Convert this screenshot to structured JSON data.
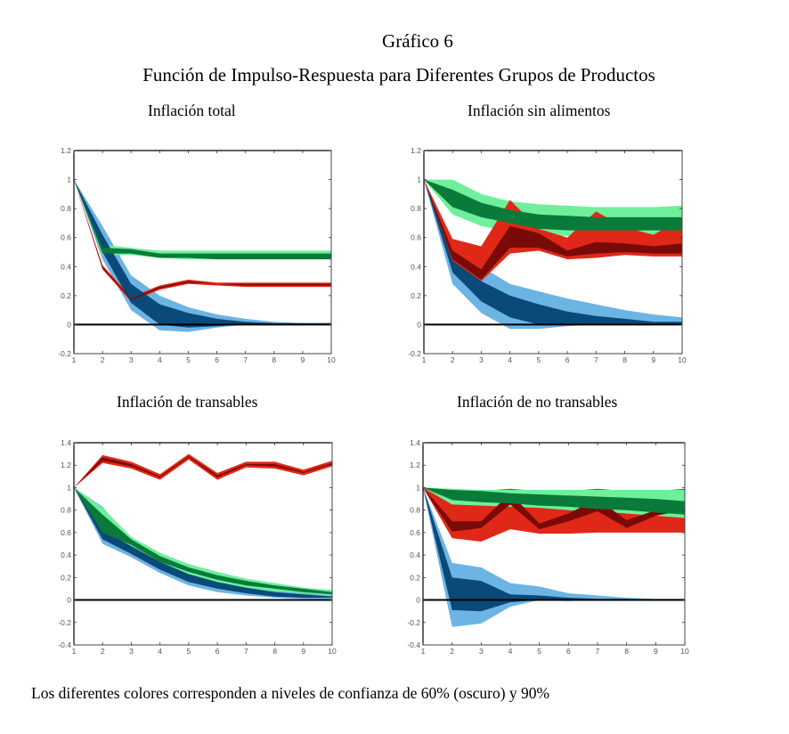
{
  "figure": {
    "title": "Gráfico 6",
    "subtitle": "Función de Impulso-Respuesta para Diferentes Grupos de Productos",
    "note": "Los diferentes colores corresponden a niveles de confianza de 60% (oscuro) y 90%"
  },
  "colors": {
    "blue_outer": "#6cb4e4",
    "blue_inner": "#0a4a78",
    "green_outer": "#6ef09a",
    "green_inner": "#0a7a3a",
    "red_outer": "#e02818",
    "red_inner": "#7a0a08",
    "zero_line": "#000000"
  },
  "chart_data": [
    {
      "type": "area",
      "title": "Inflación total",
      "x": [
        1,
        2,
        3,
        4,
        5,
        6,
        7,
        8,
        9,
        10
      ],
      "xticks": [
        "1",
        "2",
        "3",
        "4",
        "5",
        "6",
        "7",
        "8",
        "9",
        "10"
      ],
      "yticks": [
        "1.2",
        "1",
        "0.8",
        "0.6",
        "0.4",
        "0.2",
        "0",
        "-0.2"
      ],
      "ylim": [
        -0.2,
        1.2
      ],
      "xlim": [
        1,
        10
      ],
      "series": [
        {
          "name": "blue",
          "outer_lo": [
            1,
            0.45,
            0.1,
            -0.04,
            -0.05,
            -0.02,
            0,
            0,
            0,
            0
          ],
          "outer_hi": [
            1,
            0.68,
            0.34,
            0.2,
            0.12,
            0.07,
            0.04,
            0.02,
            0.01,
            0.01
          ],
          "inner_lo": [
            1,
            0.5,
            0.15,
            0.0,
            -0.02,
            -0.01,
            0,
            0,
            0,
            0
          ],
          "inner_hi": [
            1,
            0.62,
            0.28,
            0.14,
            0.08,
            0.04,
            0.02,
            0.01,
            0.01,
            0.01
          ]
        },
        {
          "name": "green",
          "outer_lo": [
            1,
            0.48,
            0.48,
            0.46,
            0.45,
            0.45,
            0.45,
            0.45,
            0.45,
            0.45
          ],
          "outer_hi": [
            1,
            0.55,
            0.53,
            0.51,
            0.51,
            0.51,
            0.51,
            0.51,
            0.51,
            0.51
          ],
          "inner_lo": [
            1,
            0.49,
            0.49,
            0.46,
            0.46,
            0.45,
            0.45,
            0.45,
            0.45,
            0.45
          ],
          "inner_hi": [
            1,
            0.53,
            0.52,
            0.49,
            0.49,
            0.49,
            0.49,
            0.49,
            0.49,
            0.49
          ]
        },
        {
          "name": "red",
          "outer_lo": [
            1,
            0.38,
            0.16,
            0.24,
            0.28,
            0.27,
            0.26,
            0.26,
            0.26,
            0.26
          ],
          "outer_hi": [
            1,
            0.41,
            0.19,
            0.27,
            0.31,
            0.29,
            0.29,
            0.29,
            0.29,
            0.29
          ],
          "inner_lo": [
            1,
            0.39,
            0.17,
            0.25,
            0.29,
            0.28,
            0.27,
            0.27,
            0.27,
            0.27
          ],
          "inner_hi": [
            1,
            0.4,
            0.18,
            0.26,
            0.3,
            0.28,
            0.28,
            0.28,
            0.28,
            0.28
          ]
        }
      ]
    },
    {
      "type": "area",
      "title": "Inflación sin alimentos",
      "x": [
        1,
        2,
        3,
        4,
        5,
        6,
        7,
        8,
        9,
        10
      ],
      "xticks": [
        "1",
        "2",
        "3",
        "4",
        "5",
        "6",
        "7",
        "8",
        "9",
        "10"
      ],
      "yticks": [
        "1.2",
        "1",
        "0.8",
        "0.6",
        "0.4",
        "0.2",
        "0",
        "-0.2"
      ],
      "ylim": [
        -0.2,
        1.2
      ],
      "xlim": [
        1,
        10
      ],
      "series": [
        {
          "name": "blue",
          "outer_lo": [
            1,
            0.28,
            0.08,
            -0.03,
            -0.03,
            -0.01,
            0,
            0,
            0,
            0
          ],
          "outer_hi": [
            1,
            0.5,
            0.4,
            0.28,
            0.23,
            0.18,
            0.14,
            0.1,
            0.07,
            0.05
          ],
          "inner_lo": [
            1,
            0.36,
            0.16,
            0.05,
            0.0,
            0,
            0,
            0,
            0,
            0
          ],
          "inner_hi": [
            1,
            0.44,
            0.3,
            0.2,
            0.14,
            0.09,
            0.06,
            0.04,
            0.02,
            0.02
          ]
        },
        {
          "name": "green",
          "outer_lo": [
            1,
            0.76,
            0.68,
            0.64,
            0.62,
            0.61,
            0.62,
            0.62,
            0.62,
            0.63
          ],
          "outer_hi": [
            1,
            1.0,
            0.9,
            0.85,
            0.83,
            0.82,
            0.81,
            0.81,
            0.81,
            0.82
          ],
          "inner_lo": [
            1,
            0.81,
            0.74,
            0.7,
            0.66,
            0.65,
            0.65,
            0.65,
            0.65,
            0.65
          ],
          "inner_hi": [
            1,
            0.93,
            0.84,
            0.79,
            0.76,
            0.75,
            0.74,
            0.74,
            0.74,
            0.74
          ]
        },
        {
          "name": "red",
          "outer_lo": [
            1,
            0.43,
            0.3,
            0.49,
            0.51,
            0.45,
            0.46,
            0.48,
            0.47,
            0.47
          ],
          "outer_hi": [
            1,
            0.59,
            0.54,
            0.86,
            0.66,
            0.6,
            0.78,
            0.67,
            0.62,
            0.73
          ],
          "inner_lo": [
            1,
            0.45,
            0.31,
            0.53,
            0.53,
            0.47,
            0.49,
            0.5,
            0.49,
            0.49
          ],
          "inner_hi": [
            1,
            0.51,
            0.38,
            0.68,
            0.63,
            0.51,
            0.57,
            0.56,
            0.54,
            0.56
          ]
        }
      ]
    },
    {
      "type": "area",
      "title": "Inflación de transables",
      "x": [
        1,
        2,
        3,
        4,
        5,
        6,
        7,
        8,
        9,
        10
      ],
      "xticks": [
        "1",
        "2",
        "3",
        "4",
        "5",
        "6",
        "7",
        "8",
        "9",
        "10"
      ],
      "yticks": [
        "1.4",
        "1.2",
        "1",
        "0.8",
        "0.6",
        "0.4",
        "0.2",
        "0",
        "-0.2",
        "-0.4"
      ],
      "ylim": [
        -0.4,
        1.4
      ],
      "xlim": [
        1,
        10
      ],
      "series": [
        {
          "name": "blue",
          "outer_lo": [
            1,
            0.5,
            0.38,
            0.24,
            0.13,
            0.07,
            0.04,
            0.02,
            0.01,
            0.01
          ],
          "outer_hi": [
            1,
            0.83,
            0.52,
            0.37,
            0.26,
            0.19,
            0.14,
            0.1,
            0.07,
            0.05
          ],
          "inner_lo": [
            1,
            0.54,
            0.41,
            0.27,
            0.16,
            0.1,
            0.06,
            0.03,
            0.02,
            0.02
          ],
          "inner_hi": [
            1,
            0.62,
            0.48,
            0.34,
            0.23,
            0.16,
            0.11,
            0.07,
            0.05,
            0.03
          ]
        },
        {
          "name": "green",
          "outer_lo": [
            1,
            0.55,
            0.45,
            0.31,
            0.22,
            0.15,
            0.11,
            0.08,
            0.06,
            0.04
          ],
          "outer_hi": [
            1,
            0.82,
            0.56,
            0.42,
            0.32,
            0.25,
            0.19,
            0.15,
            0.11,
            0.09
          ],
          "inner_lo": [
            1,
            0.6,
            0.49,
            0.34,
            0.25,
            0.18,
            0.13,
            0.1,
            0.07,
            0.05
          ],
          "inner_hi": [
            1,
            0.76,
            0.54,
            0.39,
            0.29,
            0.22,
            0.17,
            0.13,
            0.1,
            0.07
          ]
        },
        {
          "name": "red",
          "outer_lo": [
            1,
            1.22,
            1.17,
            1.07,
            1.25,
            1.07,
            1.18,
            1.17,
            1.11,
            1.19
          ],
          "outer_hi": [
            1,
            1.29,
            1.23,
            1.12,
            1.3,
            1.13,
            1.23,
            1.23,
            1.16,
            1.24
          ],
          "inner_lo": [
            1,
            1.24,
            1.19,
            1.09,
            1.27,
            1.09,
            1.2,
            1.19,
            1.13,
            1.21
          ],
          "inner_hi": [
            1,
            1.27,
            1.21,
            1.1,
            1.28,
            1.11,
            1.21,
            1.21,
            1.14,
            1.22
          ]
        }
      ]
    },
    {
      "type": "area",
      "title": "Inflación de no transables",
      "x": [
        1,
        2,
        3,
        4,
        5,
        6,
        7,
        8,
        9,
        10
      ],
      "xticks": [
        "1",
        "2",
        "3",
        "4",
        "5",
        "6",
        "7",
        "8",
        "9",
        "10"
      ],
      "yticks": [
        "1.4",
        "1.2",
        "1",
        "0.8",
        "0.6",
        "0.4",
        "0.2",
        "0",
        "-0.2",
        "-0.4"
      ],
      "ylim": [
        -0.4,
        1.4
      ],
      "xlim": [
        1,
        10
      ],
      "series": [
        {
          "name": "blue",
          "outer_lo": [
            1,
            -0.24,
            -0.21,
            -0.06,
            0.0,
            -0.01,
            0,
            0,
            0,
            0
          ],
          "outer_hi": [
            1,
            0.33,
            0.29,
            0.15,
            0.12,
            0.06,
            0.04,
            0.02,
            0.01,
            0.01
          ],
          "inner_lo": [
            1,
            -0.09,
            -0.1,
            -0.02,
            0.0,
            0,
            0,
            0,
            0,
            0
          ],
          "inner_hi": [
            1,
            0.2,
            0.17,
            0.05,
            0.04,
            0.02,
            0.01,
            0.01,
            0,
            0
          ]
        },
        {
          "name": "green",
          "outer_lo": [
            1,
            0.85,
            0.84,
            0.83,
            0.82,
            0.8,
            0.79,
            0.77,
            0.75,
            0.73
          ],
          "outer_hi": [
            1,
            0.99,
            0.98,
            0.98,
            0.98,
            0.98,
            0.98,
            0.98,
            0.98,
            0.98
          ],
          "inner_lo": [
            1,
            0.89,
            0.87,
            0.86,
            0.84,
            0.83,
            0.81,
            0.8,
            0.78,
            0.76
          ],
          "inner_hi": [
            1,
            0.98,
            0.97,
            0.95,
            0.94,
            0.93,
            0.92,
            0.91,
            0.9,
            0.88
          ]
        },
        {
          "name": "red",
          "outer_lo": [
            1,
            0.55,
            0.52,
            0.63,
            0.59,
            0.59,
            0.6,
            0.6,
            0.6,
            0.6
          ],
          "outer_hi": [
            1,
            0.98,
            0.97,
            0.99,
            0.97,
            0.97,
            0.99,
            0.97,
            0.97,
            0.99
          ],
          "inner_lo": [
            1,
            0.61,
            0.64,
            0.85,
            0.63,
            0.7,
            0.79,
            0.64,
            0.75,
            0.8
          ],
          "inner_hi": [
            1,
            0.7,
            0.7,
            0.95,
            0.68,
            0.77,
            0.9,
            0.71,
            0.8,
            0.86
          ]
        }
      ]
    }
  ]
}
